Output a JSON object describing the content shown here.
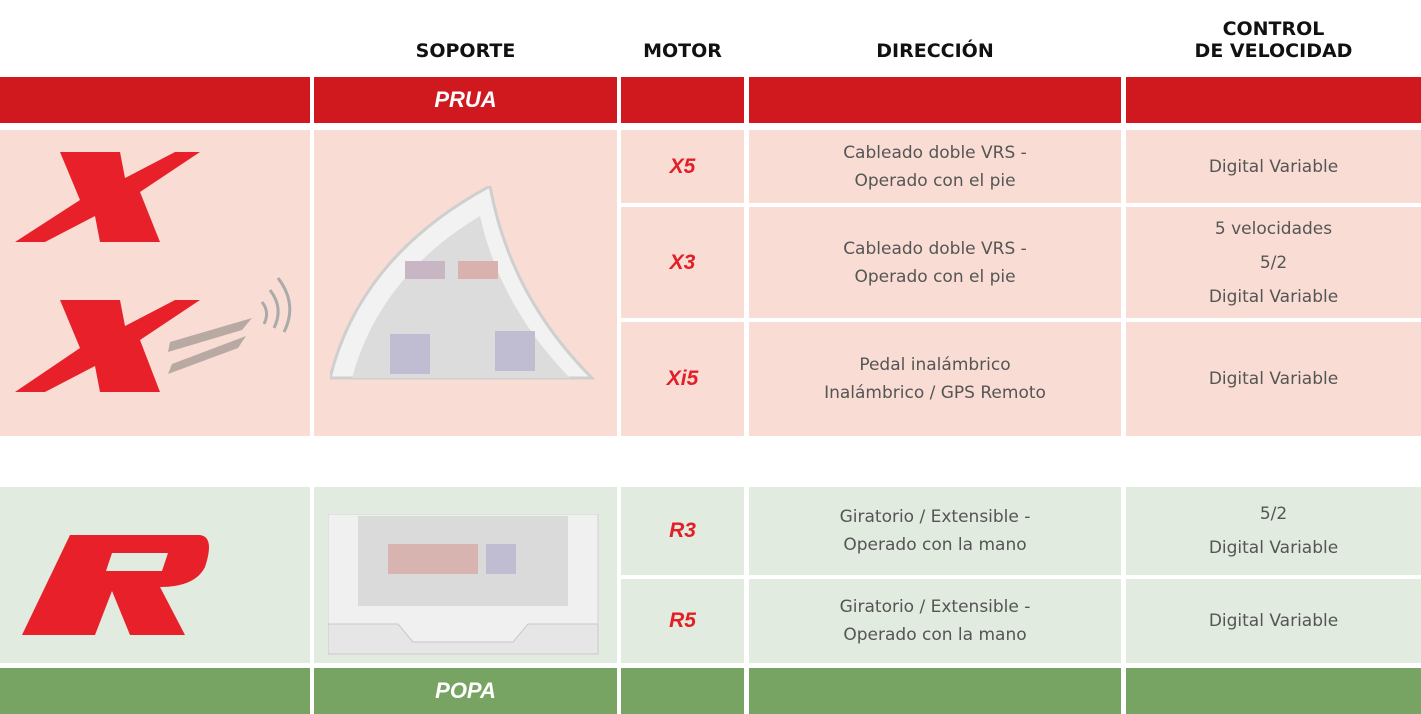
{
  "header": {
    "columns": [
      "SOPORTE",
      "MOTOR",
      "DIRECCIÓN",
      "CONTROL\nDE VELOCIDAD"
    ]
  },
  "sections": [
    {
      "label": "PRUA",
      "rows": [
        {
          "model": "X5",
          "direction": "Cableado doble VRS -\nOperado con el pie",
          "speed": "Digital Variable"
        },
        {
          "model": "X3",
          "direction": "Cableado doble VRS -\nOperado con el pie",
          "speed": "5 velocidades\n5/2\nDigital Variable"
        },
        {
          "model": "Xi5",
          "direction": "Pedal inalámbrico\nInalámbrico / GPS Remoto",
          "speed": "Digital Variable"
        }
      ]
    },
    {
      "label": "POPA",
      "rows": [
        {
          "model": "R3",
          "direction": "Giratorio / Extensible -\nOperado con la mano",
          "speed": "5/2\nDigital Variable"
        },
        {
          "model": "R5",
          "direction": "Giratorio / Extensible -\nOperado con la mano",
          "speed": "Digital Variable"
        }
      ]
    }
  ]
}
